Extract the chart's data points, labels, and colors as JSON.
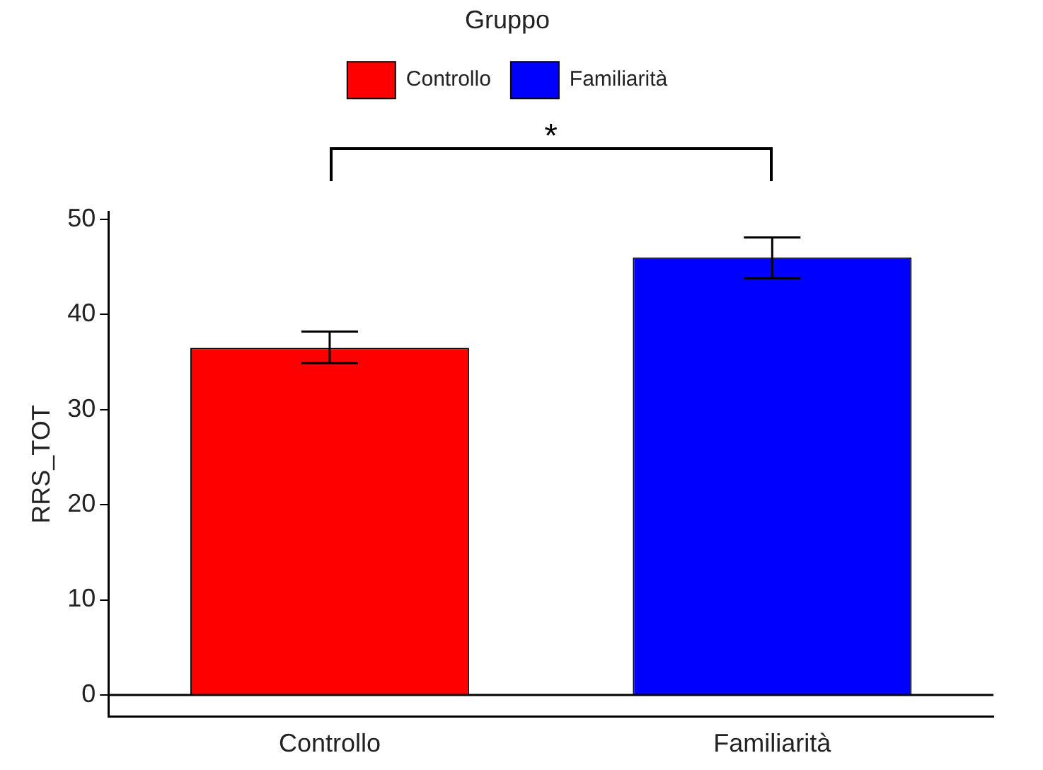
{
  "chart_data": {
    "type": "bar",
    "ylabel": "RRS_TOT",
    "legend_title": "Gruppo",
    "legend": "top",
    "categories": [
      "Controllo",
      "Familiarità"
    ],
    "series": [
      {
        "name": "Controllo",
        "color": "#ff0000",
        "values": [
          36.5,
          null
        ],
        "errors": [
          [
            34.9,
            38.2
          ],
          null
        ]
      },
      {
        "name": "Familiarità",
        "color": "#0000ff",
        "values": [
          null,
          46.0
        ],
        "errors": [
          null,
          [
            43.8,
            48.1
          ]
        ]
      }
    ],
    "ylim": [
      -2.3,
      50.8
    ],
    "yticks": [
      0,
      10,
      20,
      30,
      40,
      50
    ],
    "grid": false,
    "ref_lines": [
      {
        "axis": "y",
        "value": 0,
        "color": "#000000"
      }
    ],
    "annotations": [
      "*"
    ]
  }
}
